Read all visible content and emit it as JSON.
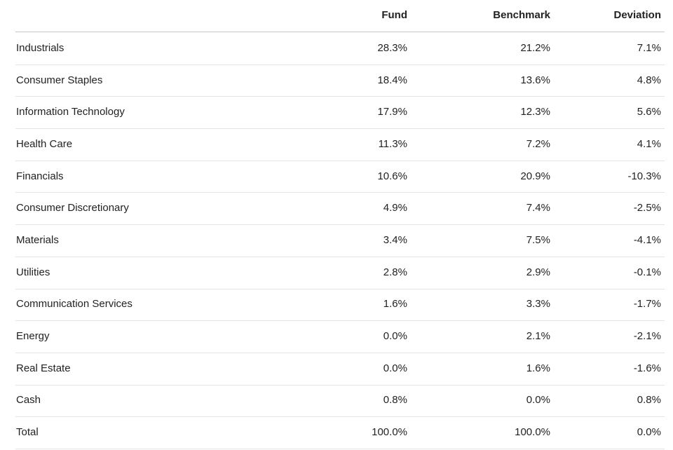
{
  "table": {
    "header": [
      "Fund",
      "Benchmark",
      "Deviation"
    ],
    "rows": [
      [
        "Industrials",
        "28.3%",
        "21.2%",
        "7.1%"
      ],
      [
        "Consumer Staples",
        "18.4%",
        "13.6%",
        "4.8%"
      ],
      [
        "Information Technology",
        "17.9%",
        "12.3%",
        "5.6%"
      ],
      [
        "Health Care",
        "11.3%",
        "7.2%",
        "4.1%"
      ],
      [
        "Financials",
        "10.6%",
        "20.9%",
        "-10.3%"
      ],
      [
        "Consumer Discretionary",
        "4.9%",
        "7.4%",
        "-2.5%"
      ],
      [
        "Materials",
        "3.4%",
        "7.5%",
        "-4.1%"
      ],
      [
        "Utilities",
        "2.8%",
        "2.9%",
        "-0.1%"
      ],
      [
        "Communication Services",
        "1.6%",
        "3.3%",
        "-1.7%"
      ],
      [
        "Energy",
        "0.0%",
        "2.1%",
        "-2.1%"
      ],
      [
        "Real Estate",
        "0.0%",
        "1.6%",
        "-1.6%"
      ],
      [
        "Cash",
        "0.8%",
        "0.0%",
        "0.8%"
      ],
      [
        "Total",
        "100.0%",
        "100.0%",
        "0.0%"
      ]
    ]
  }
}
